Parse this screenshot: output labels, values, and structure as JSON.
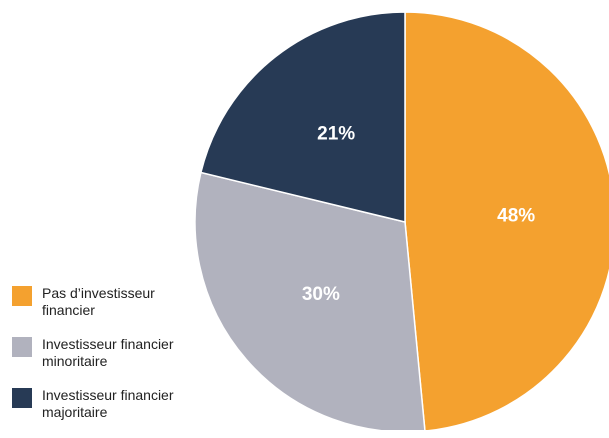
{
  "chart_data": {
    "type": "pie",
    "categories": [
      "Pas d’investisseur financier",
      "Investisseur financier minoritaire",
      "Investisseur financier majoritaire"
    ],
    "values": [
      48,
      30,
      21
    ],
    "value_labels": [
      "48%",
      "30%",
      "21%"
    ],
    "colors": [
      "#f4a12f",
      "#b1b2be",
      "#273a55"
    ],
    "legend": "bottom-left"
  }
}
